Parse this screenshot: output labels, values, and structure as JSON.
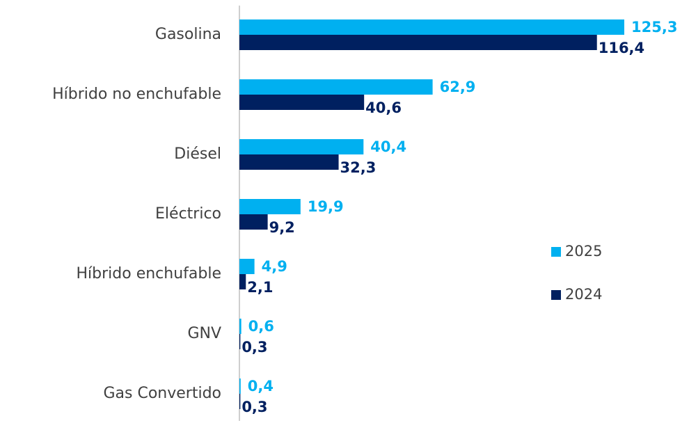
{
  "chart_data": {
    "type": "barh",
    "categories": [
      "Gasolina",
      "Híbrido no enchufable",
      "Diésel",
      "Eléctrico",
      "Híbrido enchufable",
      "GNV",
      "Gas Convertido"
    ],
    "series": [
      {
        "name": "2025",
        "color": "#00b0f0",
        "values": [
          125.3,
          62.9,
          40.4,
          19.9,
          4.9,
          0.6,
          0.4
        ],
        "value_labels": [
          "125,3",
          "62,9",
          "40,4",
          "19,9",
          "4,9",
          "0,6",
          "0,4"
        ]
      },
      {
        "name": "2024",
        "color": "#002060",
        "values": [
          116.4,
          40.6,
          32.3,
          9.2,
          2.1,
          0.3,
          0.3
        ],
        "value_labels": [
          "116,4",
          "40,6",
          "32,3",
          "9,2",
          "2,1",
          "0,3",
          "0,3"
        ]
      }
    ],
    "legend": "right"
  }
}
